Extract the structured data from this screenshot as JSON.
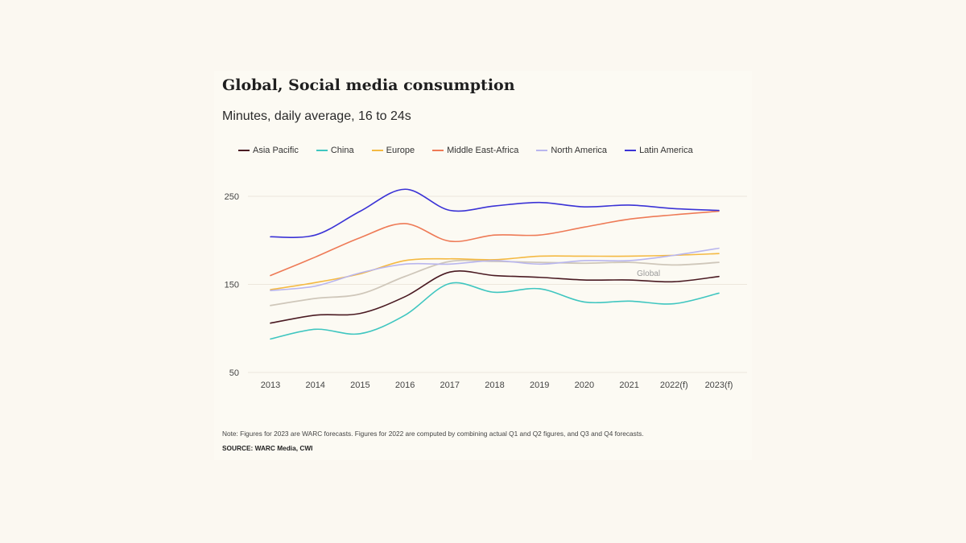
{
  "colors": {
    "background": "#fbf8f1",
    "card": "#fcfaf3",
    "grid": "#ece7dc",
    "global_label": "#9a9a9a"
  },
  "chart_data": {
    "type": "line",
    "title": "Global, Social media consumption",
    "subtitle": "Minutes, daily average, 16 to 24s",
    "x": [
      "2013",
      "2014",
      "2015",
      "2016",
      "2017",
      "2018",
      "2019",
      "2020",
      "2021",
      "2022(f)",
      "2023(f)"
    ],
    "yticks": [
      50,
      150,
      250
    ],
    "ylim": [
      50,
      250
    ],
    "grid": true,
    "legend_position": "top",
    "series": [
      {
        "name": "Asia Pacific",
        "color": "#4a1a22",
        "values": [
          106,
          115,
          117,
          136,
          164,
          160,
          158,
          155,
          155,
          153,
          159
        ]
      },
      {
        "name": "China",
        "color": "#3fc6c0",
        "values": [
          88,
          99,
          94,
          115,
          151,
          141,
          145,
          130,
          131,
          128,
          140
        ]
      },
      {
        "name": "Europe",
        "color": "#f4b942",
        "values": [
          144,
          152,
          162,
          177,
          179,
          178,
          182,
          182,
          182,
          183,
          185
        ]
      },
      {
        "name": "Middle East-Africa",
        "color": "#ee7a56",
        "values": [
          160,
          181,
          203,
          219,
          199,
          206,
          206,
          215,
          224,
          229,
          233
        ]
      },
      {
        "name": "North America",
        "color": "#b9b6ee",
        "values": [
          143,
          148,
          163,
          173,
          173,
          177,
          173,
          177,
          177,
          183,
          191
        ]
      },
      {
        "name": "Latin America",
        "color": "#3b33d6",
        "values": [
          204,
          206,
          233,
          258,
          234,
          239,
          243,
          238,
          240,
          236,
          234
        ]
      },
      {
        "name": "Global",
        "color": "#cfc7ba",
        "values": [
          126,
          134,
          139,
          159,
          176,
          176,
          175,
          174,
          175,
          172,
          175
        ],
        "label": "Global"
      }
    ],
    "legend": [
      "Asia Pacific",
      "China",
      "Europe",
      "Middle East-Africa",
      "North America",
      "Latin America"
    ]
  },
  "footnote": {
    "note": "Note: Figures for 2023 are WARC forecasts. Figures for 2022 are computed by combining actual Q1 and Q2 figures, and Q3 and Q4 forecasts.",
    "source": "SOURCE: WARC Media, CWI"
  }
}
